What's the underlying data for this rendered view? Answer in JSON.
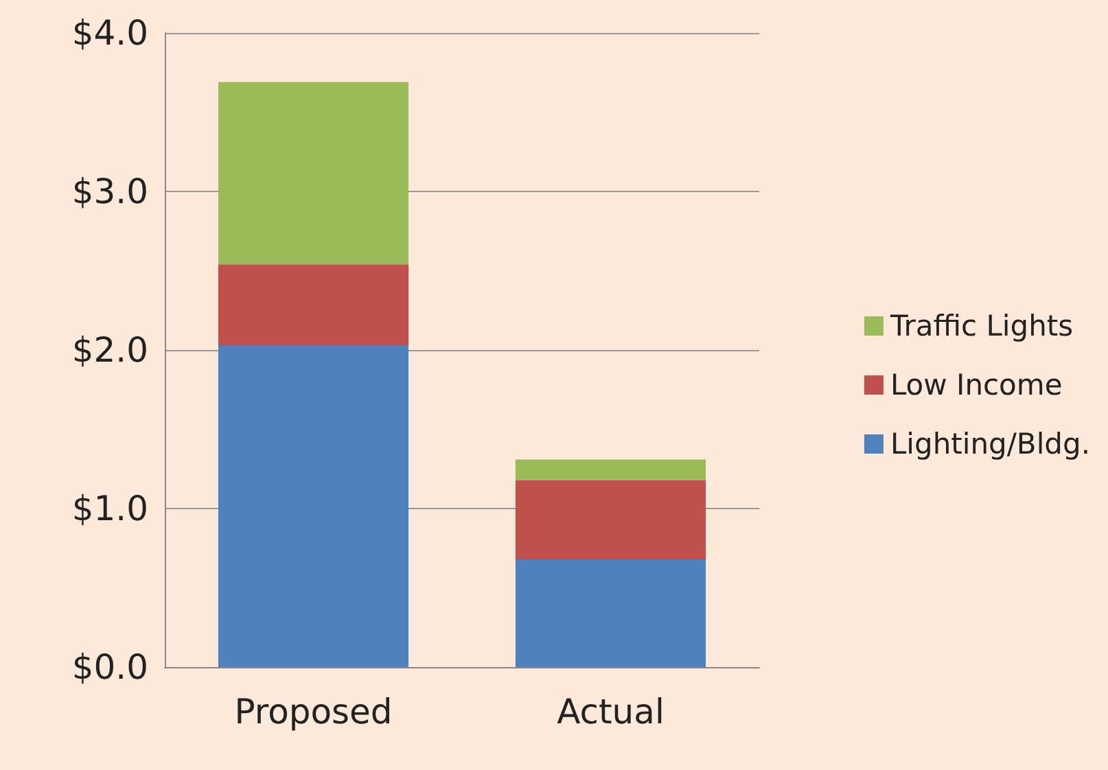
{
  "chart_data": {
    "type": "bar",
    "stacked": true,
    "categories": [
      "Proposed",
      "Actual"
    ],
    "series": [
      {
        "name": "Lighting/Bldg.",
        "color": "#4f81bd",
        "values": [
          2.03,
          0.68
        ]
      },
      {
        "name": "Low Income",
        "color": "#c0504d",
        "values": [
          0.51,
          0.5
        ]
      },
      {
        "name": "Traffic Lights",
        "color": "#9bbb59",
        "values": [
          1.15,
          0.13
        ]
      }
    ],
    "ylim": [
      0,
      4
    ],
    "yticks": [
      {
        "value": 0,
        "label": "$0.0"
      },
      {
        "value": 1,
        "label": "$1.0"
      },
      {
        "value": 2,
        "label": "$2.0"
      },
      {
        "value": 3,
        "label": "$3.0"
      },
      {
        "value": 4,
        "label": "$4.0"
      }
    ],
    "grid": "y",
    "legend": "right"
  }
}
